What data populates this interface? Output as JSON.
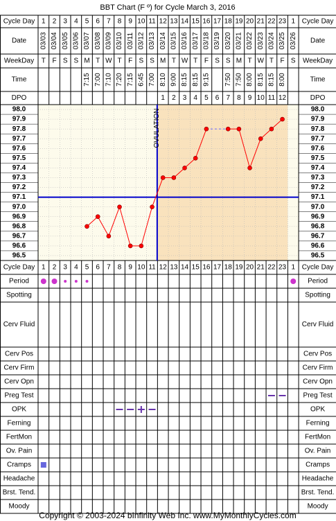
{
  "title": "BBT Chart (F º) for Cycle March 3, 2016",
  "copyright": "Copyright © 2003-2024 bInfinity Web Inc.    www.MyMonthlyCycles.com",
  "ovulation_label": "OVULATION",
  "row_labels": {
    "cycle_day": "Cycle Day",
    "date": "Date",
    "weekday": "WeekDay",
    "time": "Time",
    "dpo": "DPO"
  },
  "columns": {
    "cycle_day": [
      "1",
      "2",
      "3",
      "4",
      "5",
      "6",
      "7",
      "8",
      "9",
      "10",
      "11",
      "12",
      "13",
      "14",
      "15",
      "16",
      "17",
      "18",
      "19",
      "20",
      "21",
      "22",
      "23",
      "1"
    ],
    "date": [
      "03/03",
      "03/04",
      "03/05",
      "03/06",
      "03/07",
      "03/08",
      "03/09",
      "03/10",
      "03/11",
      "03/12",
      "03/13",
      "03/14",
      "03/15",
      "03/16",
      "03/17",
      "03/18",
      "03/19",
      "03/20",
      "03/21",
      "03/22",
      "03/23",
      "03/24",
      "03/25",
      "03/26"
    ],
    "weekday": [
      "T",
      "F",
      "S",
      "S",
      "M",
      "T",
      "W",
      "T",
      "F",
      "S",
      "S",
      "M",
      "T",
      "W",
      "T",
      "F",
      "S",
      "S",
      "M",
      "T",
      "W",
      "T",
      "F",
      "S"
    ],
    "time": [
      "",
      "",
      "",
      "",
      "7:15",
      "7:00",
      "7:10",
      "7:20",
      "7:15",
      "6:45",
      "7:00",
      "8:10",
      "9:00",
      "8:15",
      "8:15",
      "9:15",
      "",
      "7:50",
      "7:50",
      "8:00",
      "8:15",
      "8:15",
      "8:00",
      ""
    ],
    "dpo": [
      "",
      "",
      "",
      "",
      "",
      "",
      "",
      "",
      "",
      "",
      "",
      "1",
      "2",
      "3",
      "4",
      "5",
      "6",
      "7",
      "8",
      "9",
      "10",
      "11",
      "12",
      ""
    ]
  },
  "chart_data": {
    "type": "line",
    "title": "BBT Chart (F º) for Cycle March 3, 2016",
    "x": [
      1,
      2,
      3,
      4,
      5,
      6,
      7,
      8,
      9,
      10,
      11,
      12,
      13,
      14,
      15,
      16,
      17,
      18,
      19,
      20,
      21,
      22,
      23,
      24
    ],
    "series": [
      {
        "values": [
          null,
          null,
          null,
          null,
          96.8,
          96.9,
          96.7,
          97.0,
          96.6,
          96.6,
          97.0,
          97.3,
          97.3,
          97.4,
          97.5,
          97.8,
          null,
          97.8,
          97.8,
          97.4,
          97.7,
          97.8,
          97.9,
          null
        ]
      }
    ],
    "interpolated_segment": [
      16,
      18
    ],
    "ylim": [
      96.5,
      98.0
    ],
    "yticks": [
      "98.0",
      "97.9",
      "97.8",
      "97.7",
      "97.6",
      "97.5",
      "97.4",
      "97.3",
      "97.2",
      "97.1",
      "97.0",
      "96.9",
      "96.8",
      "96.7",
      "96.6",
      "96.5"
    ],
    "coverline": 97.1,
    "ovulation_day": 11,
    "colors": {
      "line": "#ff0000",
      "point": "#ff0000",
      "coverline": "#0000cc",
      "pre_ovulation_bg": "#fdfbec",
      "post_ovulation_bg": "#f9e2bd"
    }
  },
  "symptoms": [
    {
      "label": "Period",
      "marks": [
        {
          "day": 1,
          "type": "dot-large"
        },
        {
          "day": 2,
          "type": "dot-large"
        },
        {
          "day": 3,
          "type": "dot-small"
        },
        {
          "day": 4,
          "type": "dot-small"
        },
        {
          "day": 5,
          "type": "dot-small"
        },
        {
          "day": 24,
          "type": "dot-large"
        }
      ],
      "color": "#cc33cc"
    },
    {
      "label": "Spotting",
      "marks": []
    },
    {
      "label": "Cerv Fluid",
      "marks": [],
      "tall": true
    },
    {
      "label": "Cerv Pos",
      "marks": []
    },
    {
      "label": "Cerv Firm",
      "marks": []
    },
    {
      "label": "Cerv Opn",
      "marks": []
    },
    {
      "label": "Preg Test",
      "marks": [
        {
          "day": 22,
          "type": "dash"
        },
        {
          "day": 23,
          "type": "dash"
        }
      ],
      "color": "#6633aa"
    },
    {
      "label": "OPK",
      "marks": [
        {
          "day": 8,
          "type": "dash"
        },
        {
          "day": 9,
          "type": "dash"
        },
        {
          "day": 10,
          "type": "plus"
        },
        {
          "day": 11,
          "type": "dash"
        }
      ],
      "color": "#6633aa"
    },
    {
      "label": "Ferning",
      "marks": []
    },
    {
      "label": "FertMon",
      "marks": []
    },
    {
      "label": "Ov. Pain",
      "marks": []
    },
    {
      "label": "Cramps",
      "marks": [
        {
          "day": 1,
          "type": "square"
        }
      ],
      "color": "#6666dd"
    },
    {
      "label": "Headache",
      "marks": []
    },
    {
      "label": "Brst. Tend.",
      "marks": []
    },
    {
      "label": "Moody",
      "marks": []
    }
  ]
}
